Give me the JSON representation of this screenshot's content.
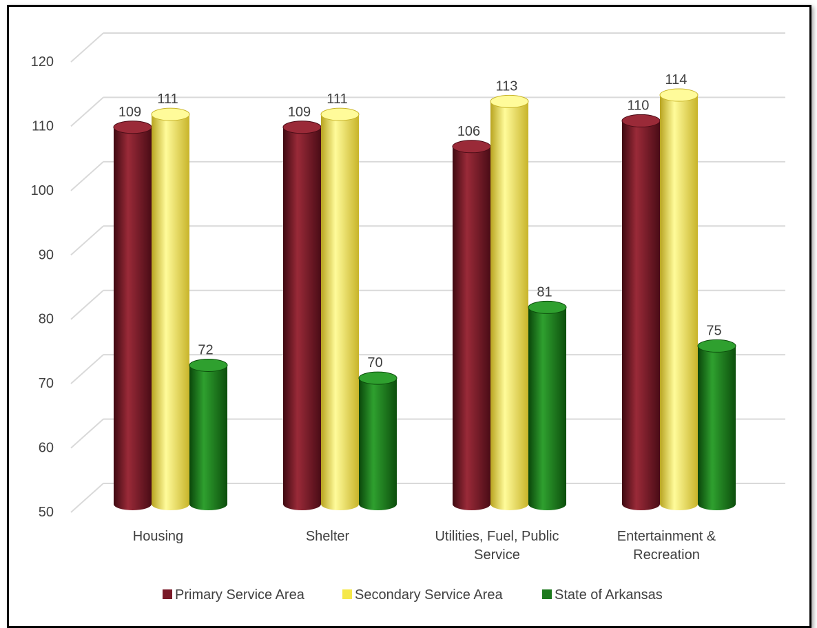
{
  "chart_data": {
    "type": "bar",
    "categories": [
      [
        "Housing"
      ],
      [
        "Shelter"
      ],
      [
        "Utilities, Fuel, Public",
        "Service"
      ],
      [
        "Entertainment &",
        "Recreation"
      ]
    ],
    "series": [
      {
        "name": "Primary Service Area",
        "values": [
          109,
          109,
          106,
          110
        ],
        "color": "#7a1a28"
      },
      {
        "name": "Secondary Service Area",
        "values": [
          111,
          111,
          113,
          114
        ],
        "color": "#f5e84a"
      },
      {
        "name": "State of Arkansas",
        "values": [
          72,
          70,
          81,
          75
        ],
        "color": "#1e7a1e"
      }
    ],
    "ylim": [
      50,
      120
    ],
    "yticks": [
      50,
      60,
      70,
      80,
      90,
      100,
      110,
      120
    ],
    "grid": true,
    "legend": "bottom",
    "title": "",
    "xlabel": "",
    "ylabel": ""
  }
}
